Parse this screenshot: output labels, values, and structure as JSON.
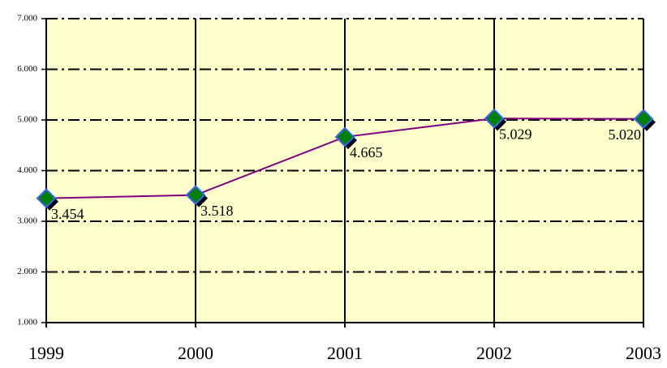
{
  "chart_data": {
    "type": "line",
    "categories": [
      "1999",
      "2000",
      "2001",
      "2002",
      "2003"
    ],
    "series": [
      {
        "color": "#800080",
        "marker_color": "#008000",
        "values": [
          3454,
          3518,
          4665,
          5029,
          5020
        ],
        "value_labels": [
          "3.454",
          "3.518",
          "4.665",
          "5.029",
          "5.020"
        ]
      }
    ],
    "ylim": [
      1000,
      7000
    ],
    "yticks": [
      {
        "value": 1000,
        "label": "1.000"
      },
      {
        "value": 2000,
        "label": "2.000"
      },
      {
        "value": 3000,
        "label": "3.000"
      },
      {
        "value": 4000,
        "label": "4.000"
      },
      {
        "value": 5000,
        "label": "5.000"
      },
      {
        "value": 6000,
        "label": "6.000"
      },
      {
        "value": 7000,
        "label": "7.000"
      }
    ],
    "grid": true,
    "background": "#ffffcc"
  }
}
